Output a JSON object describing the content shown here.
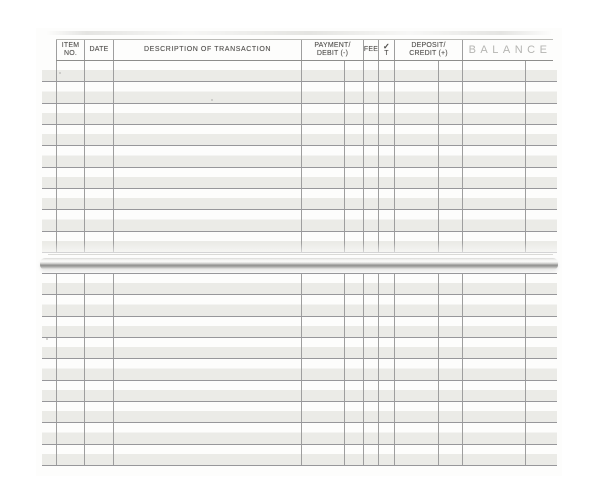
{
  "register": {
    "header": {
      "item_no_line1": "ITEM",
      "item_no_line2": "NO.",
      "date": "DATE",
      "description": "DESCRIPTION OF TRANSACTION",
      "payment_line1": "PAYMENT/",
      "payment_line2": "DEBIT (-)",
      "fee": "FEE",
      "cleared_check": "✓",
      "cleared_letter": "T",
      "deposit_line1": "DEPOSIT/",
      "deposit_line2": "CREDIT (+)",
      "balance": "BALANCE"
    },
    "sections": {
      "top": {
        "rows": [
          [
            "",
            "",
            "",
            "",
            "",
            "",
            "",
            ""
          ],
          [
            "",
            "",
            "",
            "",
            "",
            "",
            "",
            ""
          ],
          [
            "",
            "",
            "",
            "",
            "",
            "",
            "",
            ""
          ],
          [
            "",
            "",
            "",
            "",
            "",
            "",
            "",
            ""
          ],
          [
            "",
            "",
            "",
            "",
            "",
            "",
            "",
            ""
          ],
          [
            "",
            "",
            "",
            "",
            "",
            "",
            "",
            ""
          ],
          [
            "",
            "",
            "",
            "",
            "",
            "",
            "",
            ""
          ],
          [
            "",
            "",
            "",
            "",
            "",
            "",
            "",
            ""
          ],
          [
            "",
            "",
            "",
            "",
            "",
            "",
            "",
            ""
          ]
        ]
      },
      "bottom": {
        "rows": [
          [
            "",
            "",
            "",
            "",
            "",
            "",
            "",
            ""
          ],
          [
            "",
            "",
            "",
            "",
            "",
            "",
            "",
            ""
          ],
          [
            "",
            "",
            "",
            "",
            "",
            "",
            "",
            ""
          ],
          [
            "",
            "",
            "",
            "",
            "",
            "",
            "",
            ""
          ],
          [
            "",
            "",
            "",
            "",
            "",
            "",
            "",
            ""
          ],
          [
            "",
            "",
            "",
            "",
            "",
            "",
            "",
            ""
          ],
          [
            "",
            "",
            "",
            "",
            "",
            "",
            "",
            ""
          ],
          [
            "",
            "",
            "",
            "",
            "",
            "",
            "",
            ""
          ],
          [
            "",
            "",
            "",
            "",
            "",
            "",
            "",
            ""
          ]
        ]
      }
    },
    "colors": {
      "row_shade": "#ebebe7",
      "rule_line": "#97979a",
      "grid_line": "#9e9e9e",
      "header_text": "#514f4c",
      "balance_header_text": "#b5b5b2",
      "binding_core": "#929290"
    }
  }
}
